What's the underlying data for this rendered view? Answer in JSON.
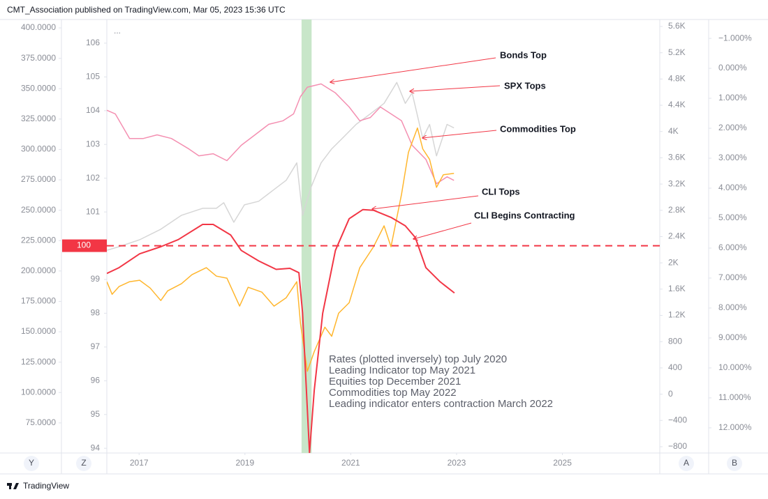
{
  "header": "CMT_Association published on TradingView.com, Mar 05, 2023 15:36 UTC",
  "footer": "TradingView",
  "chart_data": {
    "type": "line",
    "menu": "...",
    "xlim": [
      2016.39,
      2026.84
    ],
    "xticks": [
      2017,
      2019,
      2021,
      2023,
      2025
    ],
    "axes": [
      {
        "name": "Y",
        "lim": [
          50.25,
          406.9
        ],
        "ticks": [
          {
            "value": 400,
            "label": "400.0000"
          },
          {
            "value": 375,
            "label": "375.0000"
          },
          {
            "value": 350,
            "label": "350.0000"
          },
          {
            "value": 325,
            "label": "325.0000"
          },
          {
            "value": 300,
            "label": "300.0000"
          },
          {
            "value": 275,
            "label": "275.0000"
          },
          {
            "value": 250,
            "label": "250.0000"
          },
          {
            "value": 225,
            "label": "225.0000"
          },
          {
            "value": 200,
            "label": "200.0000"
          },
          {
            "value": 175,
            "label": "175.0000"
          },
          {
            "value": 150,
            "label": "150.0000"
          },
          {
            "value": 125,
            "label": "125.0000"
          },
          {
            "value": 100,
            "label": "100.0000"
          },
          {
            "value": 75,
            "label": "75.0000"
          }
        ]
      },
      {
        "name": "Z",
        "lim": [
          93.86,
          106.7
        ],
        "ticks": [
          106,
          105,
          104,
          103,
          102,
          101,
          100,
          99,
          98,
          97,
          96,
          95,
          94
        ]
      },
      {
        "name": "A",
        "lim": [
          -896,
          5706
        ],
        "ticks": [
          {
            "value": 5600,
            "label": "5.6K"
          },
          {
            "value": 5200,
            "label": "5.2K"
          },
          {
            "value": 4800,
            "label": "4.8K"
          },
          {
            "value": 4400,
            "label": "4.4K"
          },
          {
            "value": 4000,
            "label": "4K"
          },
          {
            "value": 3600,
            "label": "3.6K"
          },
          {
            "value": 3200,
            "label": "3.2K"
          },
          {
            "value": 2800,
            "label": "2.8K"
          },
          {
            "value": 2400,
            "label": "2.4K"
          },
          {
            "value": 2000,
            "label": "2K"
          },
          {
            "value": 1600,
            "label": "1.6K"
          },
          {
            "value": 1200,
            "label": "1.2K"
          },
          800,
          400,
          0,
          {
            "value": -400,
            "label": "−400"
          },
          {
            "value": -800,
            "label": "−800"
          }
        ]
      },
      {
        "name": "B",
        "lim": [
          -1.63,
          12.84
        ],
        "inverted": true,
        "ticks": [
          {
            "value": -1,
            "label": "−1.000%"
          },
          {
            "value": 0,
            "label": "0.000%"
          },
          {
            "value": 1,
            "label": "1.000%"
          },
          {
            "value": 2,
            "label": "2.000%"
          },
          {
            "value": 3,
            "label": "3.000%"
          },
          {
            "value": 4,
            "label": "4.000%"
          },
          {
            "value": 5,
            "label": "5.000%"
          },
          {
            "value": 6,
            "label": "6.000%"
          },
          {
            "value": 7,
            "label": "7.000%"
          },
          {
            "value": 8,
            "label": "8.000%"
          },
          {
            "value": 9,
            "label": "9.000%"
          },
          {
            "value": 10,
            "label": "10.000%"
          },
          {
            "value": 11,
            "label": "11.000%"
          },
          {
            "value": 12,
            "label": "12.000%"
          }
        ]
      }
    ],
    "shade": {
      "x": [
        2020.07,
        2020.26
      ],
      "color": "#c8e6c9"
    },
    "hline": {
      "value": 100,
      "axis": 1,
      "color": "#f23645"
    },
    "series": [
      {
        "axis": 2,
        "color": "#d6d6d6",
        "x": [
          2016.39,
          2016.62,
          2017.01,
          2017.41,
          2017.8,
          2018.2,
          2018.46,
          2018.6,
          2018.79,
          2018.99,
          2019.26,
          2019.52,
          2019.78,
          2019.98,
          2020.09,
          2020.25,
          2020.44,
          2020.64,
          2020.84,
          2021.1,
          2021.37,
          2021.63,
          2021.87,
          2022.03,
          2022.16,
          2022.36,
          2022.49,
          2022.62,
          2022.82,
          2022.95
        ],
        "values": [
          2192,
          2246,
          2352,
          2512,
          2725,
          2831,
          2831,
          2916,
          2618,
          2884,
          2938,
          3098,
          3257,
          3523,
          2725,
          3151,
          3523,
          3736,
          3896,
          4109,
          4269,
          4429,
          4748,
          4429,
          4588,
          3896,
          4109,
          3630,
          4109,
          4056
        ]
      },
      {
        "axis": 3,
        "color": "#f48fb1",
        "x": [
          2016.39,
          2016.55,
          2016.82,
          2017.08,
          2017.34,
          2017.61,
          2017.94,
          2018.13,
          2018.4,
          2018.66,
          2018.93,
          2019.19,
          2019.45,
          2019.72,
          2019.92,
          2020.05,
          2020.18,
          2020.44,
          2020.71,
          2020.97,
          2021.17,
          2021.37,
          2021.56,
          2021.76,
          2021.96,
          2022.16,
          2022.42,
          2022.62,
          2022.82,
          2022.95
        ],
        "values": [
          1.4,
          1.52,
          2.34,
          2.34,
          2.22,
          2.34,
          2.69,
          2.92,
          2.85,
          3.08,
          2.57,
          2.22,
          1.87,
          1.75,
          1.52,
          0.94,
          0.63,
          0.52,
          0.82,
          1.29,
          1.75,
          1.64,
          1.29,
          1.52,
          1.75,
          2.57,
          3.04,
          3.85,
          3.62,
          3.74
        ]
      },
      {
        "axis": 0,
        "color": "#ffb62d",
        "x": [
          2016.39,
          2016.49,
          2016.62,
          2016.82,
          2017.01,
          2017.21,
          2017.41,
          2017.54,
          2017.8,
          2018.0,
          2018.27,
          2018.46,
          2018.66,
          2018.9,
          2019.06,
          2019.32,
          2019.55,
          2019.78,
          2019.98,
          2020.05,
          2020.18,
          2020.31,
          2020.51,
          2020.64,
          2020.77,
          2020.97,
          2021.17,
          2021.43,
          2021.63,
          2021.76,
          2021.96,
          2022.09,
          2022.26,
          2022.36,
          2022.49,
          2022.62,
          2022.75,
          2022.95
        ],
        "values": [
          191.2,
          180.8,
          187.2,
          191.2,
          192.4,
          186.0,
          175.7,
          183.7,
          189.5,
          197.0,
          202.7,
          195.8,
          194.1,
          171.1,
          186.6,
          182.6,
          171.1,
          178.0,
          191.2,
          156.7,
          117.5,
          133.7,
          153.8,
          146.3,
          165.3,
          173.9,
          202.7,
          219.9,
          237.2,
          219.9,
          263.1,
          297.6,
          317.7,
          300.5,
          291.8,
          268.8,
          279.2,
          280.3
        ]
      },
      {
        "axis": 1,
        "color": "#f23645",
        "x": [
          2016.39,
          2016.62,
          2017.01,
          2017.41,
          2017.74,
          2018.2,
          2018.4,
          2018.73,
          2018.93,
          2019.26,
          2019.59,
          2019.85,
          2020.02,
          2020.09,
          2020.22,
          2020.31,
          2020.47,
          2020.71,
          2020.97,
          2021.23,
          2021.43,
          2021.76,
          2022.03,
          2022.22,
          2022.42,
          2022.69,
          2022.96
        ],
        "values": [
          99.18,
          99.35,
          99.76,
          99.97,
          100.18,
          100.63,
          100.63,
          100.32,
          99.86,
          99.55,
          99.3,
          99.33,
          99.2,
          98.0,
          93.86,
          95.72,
          98.0,
          99.86,
          100.8,
          101.07,
          101.05,
          100.84,
          100.59,
          100.24,
          99.35,
          98.93,
          98.6
        ]
      }
    ],
    "annotations": [
      "Bonds Top",
      "SPX Tops",
      "Commodities Top",
      "CLI Tops",
      "CLI Begins Contracting"
    ],
    "notes": [
      "Rates (plotted inversely) top July 2020",
      "Leading Indicator top May 2021",
      "Equities top December 2021",
      "Commodities top May 2022",
      "Leading indicator enters contraction March 2022"
    ]
  }
}
